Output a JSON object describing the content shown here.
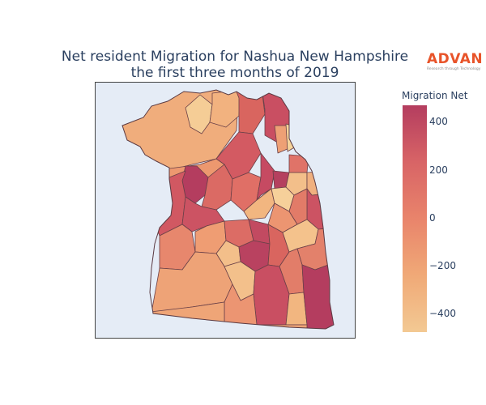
{
  "title_line1": "Net resident Migration for Nashua New Hampshire",
  "title_line2": "the first three months of 2019",
  "logo": {
    "wordmark": "ADVAN",
    "tagline": "Research through Technology"
  },
  "legend": {
    "title": "Migration Net",
    "ticks": [
      "400",
      "200",
      "0",
      "−200",
      "−400"
    ],
    "range": [
      -470,
      470
    ],
    "colorscale": [
      "#f3c993",
      "#f0a977",
      "#e9846b",
      "#d86466",
      "#b43d5f"
    ]
  },
  "map": {
    "background": "#e5ecf6",
    "border_color": "#4a4a4a",
    "description": "choropleth of census block groups"
  }
}
